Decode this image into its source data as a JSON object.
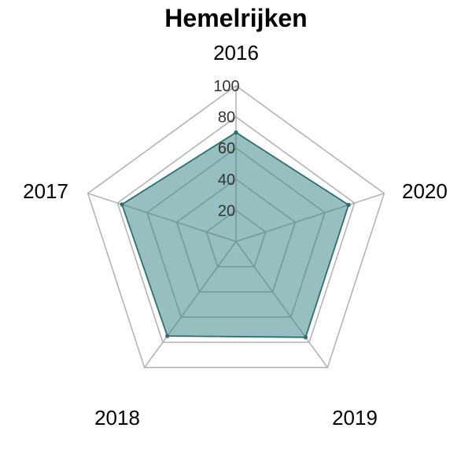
{
  "chart_data": {
    "type": "radar",
    "title": "Hemelrijken",
    "categories": [
      "2016",
      "2020",
      "2019",
      "2018",
      "2017"
    ],
    "series": [
      {
        "values": [
          70,
          76,
          76,
          75,
          77
        ]
      }
    ],
    "range": [
      0,
      100
    ],
    "ticks": [
      20,
      40,
      60,
      80,
      100
    ],
    "grid": true,
    "colors": {
      "fill": "#2f7f7f",
      "stroke": "#2a6e6e",
      "grid": "#b0b0b0"
    }
  }
}
